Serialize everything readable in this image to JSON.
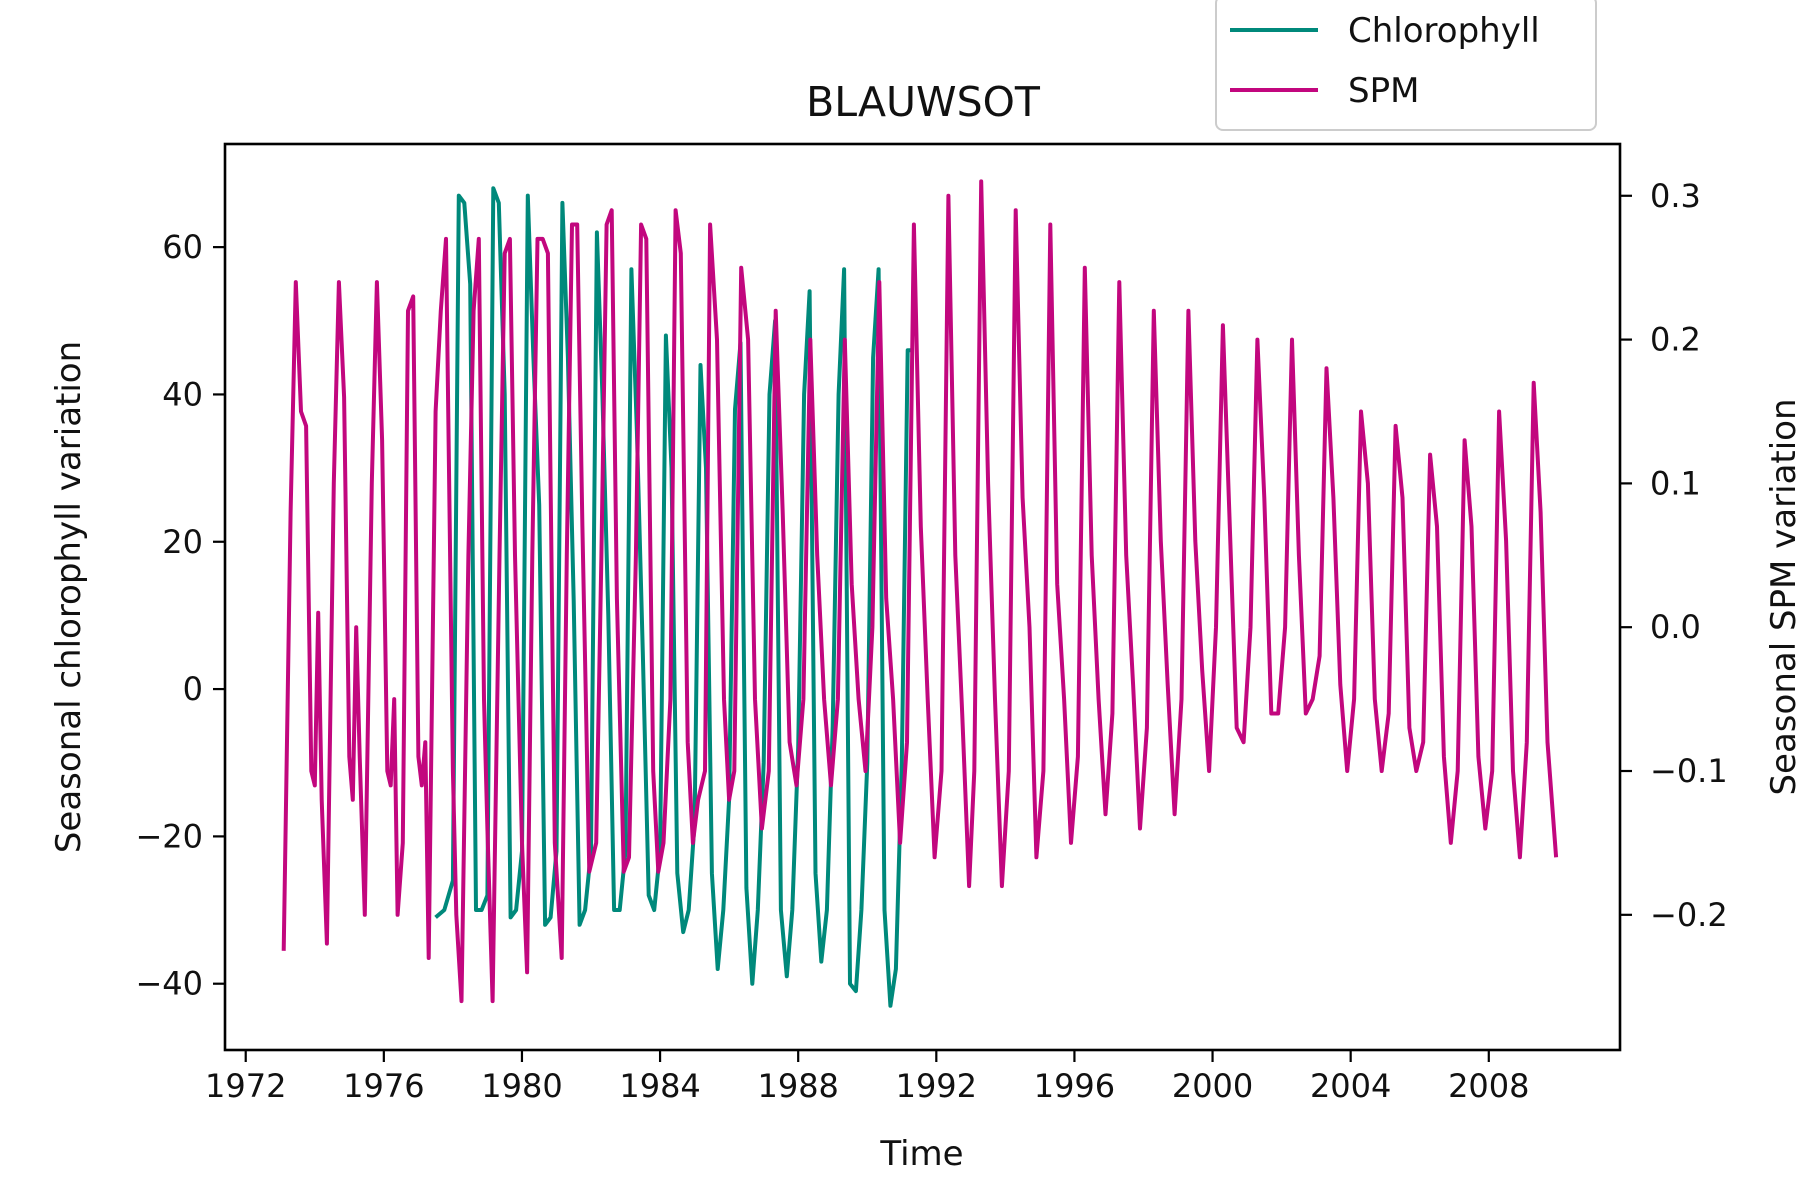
{
  "chart_data": {
    "type": "line",
    "title": "BLAUWSOT",
    "xlabel": "Time",
    "ylabel_left": "Seasonal chlorophyll variation",
    "ylabel_right": "Seasonal SPM variation",
    "xlim": [
      1971.4,
      2011.8
    ],
    "xticks": [
      1972,
      1976,
      1980,
      1984,
      1988,
      1992,
      1996,
      2000,
      2004,
      2008
    ],
    "ylim_left": [
      -49,
      74
    ],
    "yticks_left": [
      -40,
      -20,
      0,
      20,
      40,
      60
    ],
    "ylim_right": [
      -0.294,
      0.336
    ],
    "yticks_right": [
      -0.2,
      -0.1,
      0.0,
      0.1,
      0.2,
      0.3
    ],
    "grid": false,
    "legend": {
      "position": "top-right",
      "entries": [
        "Chlorophyll",
        "SPM"
      ]
    },
    "series": [
      {
        "name": "Chlorophyll",
        "axis": "left",
        "color": "#00897b",
        "points": [
          [
            1977.5,
            -31
          ],
          [
            1977.75,
            -30
          ],
          [
            1978.0,
            -26
          ],
          [
            1978.17,
            67
          ],
          [
            1978.33,
            66
          ],
          [
            1978.5,
            55
          ],
          [
            1978.67,
            -30
          ],
          [
            1978.83,
            -30
          ],
          [
            1979.0,
            -28
          ],
          [
            1979.17,
            68
          ],
          [
            1979.33,
            66
          ],
          [
            1979.5,
            40
          ],
          [
            1979.67,
            -31
          ],
          [
            1979.83,
            -30
          ],
          [
            1980.0,
            -22
          ],
          [
            1980.17,
            67
          ],
          [
            1980.33,
            45
          ],
          [
            1980.5,
            25
          ],
          [
            1980.67,
            -32
          ],
          [
            1980.83,
            -31
          ],
          [
            1981.0,
            -22
          ],
          [
            1981.17,
            66
          ],
          [
            1981.33,
            45
          ],
          [
            1981.5,
            12
          ],
          [
            1981.67,
            -32
          ],
          [
            1981.83,
            -30
          ],
          [
            1982.0,
            -22
          ],
          [
            1982.17,
            62
          ],
          [
            1982.33,
            40
          ],
          [
            1982.5,
            10
          ],
          [
            1982.67,
            -30
          ],
          [
            1982.83,
            -30
          ],
          [
            1983.0,
            -22
          ],
          [
            1983.17,
            57
          ],
          [
            1983.33,
            35
          ],
          [
            1983.5,
            5
          ],
          [
            1983.67,
            -28
          ],
          [
            1983.83,
            -30
          ],
          [
            1984.0,
            -22
          ],
          [
            1984.17,
            48
          ],
          [
            1984.33,
            30
          ],
          [
            1984.5,
            -25
          ],
          [
            1984.67,
            -33
          ],
          [
            1984.83,
            -30
          ],
          [
            1985.0,
            -18
          ],
          [
            1985.17,
            44
          ],
          [
            1985.33,
            30
          ],
          [
            1985.5,
            -25
          ],
          [
            1985.67,
            -38
          ],
          [
            1985.83,
            -30
          ],
          [
            1986.0,
            -15
          ],
          [
            1986.17,
            38
          ],
          [
            1986.33,
            47
          ],
          [
            1986.5,
            -27
          ],
          [
            1986.67,
            -40
          ],
          [
            1986.83,
            -30
          ],
          [
            1987.0,
            -10
          ],
          [
            1987.17,
            40
          ],
          [
            1987.33,
            50
          ],
          [
            1987.5,
            -30
          ],
          [
            1987.67,
            -39
          ],
          [
            1987.83,
            -30
          ],
          [
            1988.0,
            -8
          ],
          [
            1988.17,
            40
          ],
          [
            1988.33,
            54
          ],
          [
            1988.5,
            -25
          ],
          [
            1988.67,
            -37
          ],
          [
            1988.83,
            -30
          ],
          [
            1989.0,
            -5
          ],
          [
            1989.17,
            40
          ],
          [
            1989.33,
            57
          ],
          [
            1989.5,
            -40
          ],
          [
            1989.67,
            -41
          ],
          [
            1989.83,
            -30
          ],
          [
            1990.0,
            -10
          ],
          [
            1990.17,
            45
          ],
          [
            1990.33,
            57
          ],
          [
            1990.5,
            -30
          ],
          [
            1990.67,
            -43
          ],
          [
            1990.83,
            -38
          ],
          [
            1991.0,
            -10
          ],
          [
            1991.17,
            46
          ],
          [
            1991.33,
            46
          ]
        ]
      },
      {
        "name": "SPM",
        "axis": "right",
        "color": "#c2077e",
        "points": [
          [
            1973.1,
            -0.225
          ],
          [
            1973.3,
            0.08
          ],
          [
            1973.45,
            0.24
          ],
          [
            1973.6,
            0.15
          ],
          [
            1973.75,
            0.14
          ],
          [
            1973.9,
            -0.1
          ],
          [
            1974.0,
            -0.11
          ],
          [
            1974.1,
            0.01
          ],
          [
            1974.2,
            -0.12
          ],
          [
            1974.35,
            -0.22
          ],
          [
            1974.55,
            0.1
          ],
          [
            1974.7,
            0.24
          ],
          [
            1974.85,
            0.16
          ],
          [
            1975.0,
            -0.09
          ],
          [
            1975.1,
            -0.12
          ],
          [
            1975.2,
            0.0
          ],
          [
            1975.3,
            -0.09
          ],
          [
            1975.45,
            -0.2
          ],
          [
            1975.65,
            0.1
          ],
          [
            1975.8,
            0.24
          ],
          [
            1975.95,
            0.13
          ],
          [
            1976.1,
            -0.1
          ],
          [
            1976.2,
            -0.11
          ],
          [
            1976.3,
            -0.05
          ],
          [
            1976.4,
            -0.2
          ],
          [
            1976.55,
            -0.15
          ],
          [
            1976.7,
            0.22
          ],
          [
            1976.85,
            0.23
          ],
          [
            1977.0,
            -0.09
          ],
          [
            1977.1,
            -0.11
          ],
          [
            1977.2,
            -0.08
          ],
          [
            1977.3,
            -0.23
          ],
          [
            1977.5,
            0.15
          ],
          [
            1977.65,
            0.22
          ],
          [
            1977.8,
            0.27
          ],
          [
            1978.0,
            -0.1
          ],
          [
            1978.1,
            -0.2
          ],
          [
            1978.25,
            -0.26
          ],
          [
            1978.45,
            0.05
          ],
          [
            1978.6,
            0.22
          ],
          [
            1978.75,
            0.27
          ],
          [
            1978.9,
            -0.05
          ],
          [
            1979.0,
            -0.14
          ],
          [
            1979.15,
            -0.26
          ],
          [
            1979.35,
            0.05
          ],
          [
            1979.5,
            0.26
          ],
          [
            1979.65,
            0.27
          ],
          [
            1979.8,
            0.05
          ],
          [
            1980.0,
            -0.15
          ],
          [
            1980.15,
            -0.24
          ],
          [
            1980.3,
            0.05
          ],
          [
            1980.45,
            0.27
          ],
          [
            1980.6,
            0.27
          ],
          [
            1980.75,
            0.26
          ],
          [
            1980.95,
            -0.15
          ],
          [
            1981.15,
            -0.23
          ],
          [
            1981.3,
            0.05
          ],
          [
            1981.45,
            0.28
          ],
          [
            1981.6,
            0.28
          ],
          [
            1981.75,
            0.07
          ],
          [
            1981.95,
            -0.17
          ],
          [
            1982.15,
            -0.15
          ],
          [
            1982.3,
            0.05
          ],
          [
            1982.45,
            0.28
          ],
          [
            1982.6,
            0.29
          ],
          [
            1982.75,
            0.02
          ],
          [
            1982.95,
            -0.17
          ],
          [
            1983.1,
            -0.16
          ],
          [
            1983.3,
            0.05
          ],
          [
            1983.45,
            0.28
          ],
          [
            1983.6,
            0.27
          ],
          [
            1983.8,
            -0.1
          ],
          [
            1983.95,
            -0.17
          ],
          [
            1984.1,
            -0.15
          ],
          [
            1984.3,
            -0.05
          ],
          [
            1984.45,
            0.29
          ],
          [
            1984.6,
            0.26
          ],
          [
            1984.8,
            -0.08
          ],
          [
            1984.95,
            -0.15
          ],
          [
            1985.1,
            -0.12
          ],
          [
            1985.3,
            -0.1
          ],
          [
            1985.45,
            0.28
          ],
          [
            1985.65,
            0.2
          ],
          [
            1985.85,
            -0.05
          ],
          [
            1986.0,
            -0.12
          ],
          [
            1986.15,
            -0.1
          ],
          [
            1986.35,
            0.25
          ],
          [
            1986.55,
            0.2
          ],
          [
            1986.75,
            -0.05
          ],
          [
            1986.95,
            -0.14
          ],
          [
            1987.15,
            -0.1
          ],
          [
            1987.35,
            0.22
          ],
          [
            1987.55,
            0.08
          ],
          [
            1987.75,
            -0.08
          ],
          [
            1987.95,
            -0.11
          ],
          [
            1988.15,
            -0.05
          ],
          [
            1988.35,
            0.2
          ],
          [
            1988.55,
            0.05
          ],
          [
            1988.75,
            -0.05
          ],
          [
            1988.95,
            -0.11
          ],
          [
            1989.15,
            -0.05
          ],
          [
            1989.35,
            0.2
          ],
          [
            1989.55,
            0.03
          ],
          [
            1989.75,
            -0.05
          ],
          [
            1989.95,
            -0.1
          ],
          [
            1990.15,
            0.0
          ],
          [
            1990.35,
            0.24
          ],
          [
            1990.55,
            0.02
          ],
          [
            1990.75,
            -0.05
          ],
          [
            1990.95,
            -0.15
          ],
          [
            1991.15,
            -0.08
          ],
          [
            1991.35,
            0.28
          ],
          [
            1991.55,
            0.07
          ],
          [
            1991.75,
            -0.05
          ],
          [
            1991.95,
            -0.16
          ],
          [
            1992.15,
            -0.1
          ],
          [
            1992.35,
            0.3
          ],
          [
            1992.55,
            0.05
          ],
          [
            1992.75,
            -0.06
          ],
          [
            1992.95,
            -0.18
          ],
          [
            1993.1,
            -0.1
          ],
          [
            1993.3,
            0.31
          ],
          [
            1993.5,
            0.1
          ],
          [
            1993.7,
            -0.05
          ],
          [
            1993.9,
            -0.18
          ],
          [
            1994.1,
            -0.1
          ],
          [
            1994.3,
            0.29
          ],
          [
            1994.5,
            0.09
          ],
          [
            1994.7,
            0.0
          ],
          [
            1994.9,
            -0.16
          ],
          [
            1995.1,
            -0.1
          ],
          [
            1995.3,
            0.28
          ],
          [
            1995.5,
            0.03
          ],
          [
            1995.7,
            -0.05
          ],
          [
            1995.9,
            -0.15
          ],
          [
            1996.1,
            -0.09
          ],
          [
            1996.3,
            0.25
          ],
          [
            1996.5,
            0.05
          ],
          [
            1996.7,
            -0.05
          ],
          [
            1996.9,
            -0.13
          ],
          [
            1997.1,
            -0.06
          ],
          [
            1997.3,
            0.24
          ],
          [
            1997.5,
            0.05
          ],
          [
            1997.7,
            -0.04
          ],
          [
            1997.9,
            -0.14
          ],
          [
            1998.1,
            -0.07
          ],
          [
            1998.3,
            0.22
          ],
          [
            1998.5,
            0.06
          ],
          [
            1998.7,
            -0.04
          ],
          [
            1998.9,
            -0.13
          ],
          [
            1999.1,
            -0.05
          ],
          [
            1999.3,
            0.22
          ],
          [
            1999.5,
            0.06
          ],
          [
            1999.7,
            -0.03
          ],
          [
            1999.9,
            -0.1
          ],
          [
            2000.1,
            0.0
          ],
          [
            2000.3,
            0.21
          ],
          [
            2000.5,
            0.07
          ],
          [
            2000.7,
            -0.07
          ],
          [
            2000.9,
            -0.08
          ],
          [
            2001.1,
            0.0
          ],
          [
            2001.3,
            0.2
          ],
          [
            2001.5,
            0.09
          ],
          [
            2001.7,
            -0.06
          ],
          [
            2001.9,
            -0.06
          ],
          [
            2002.1,
            0.0
          ],
          [
            2002.3,
            0.2
          ],
          [
            2002.5,
            0.05
          ],
          [
            2002.7,
            -0.06
          ],
          [
            2002.9,
            -0.05
          ],
          [
            2003.1,
            -0.02
          ],
          [
            2003.3,
            0.18
          ],
          [
            2003.5,
            0.09
          ],
          [
            2003.7,
            -0.04
          ],
          [
            2003.9,
            -0.1
          ],
          [
            2004.1,
            -0.05
          ],
          [
            2004.3,
            0.15
          ],
          [
            2004.5,
            0.1
          ],
          [
            2004.7,
            -0.05
          ],
          [
            2004.9,
            -0.1
          ],
          [
            2005.1,
            -0.06
          ],
          [
            2005.3,
            0.14
          ],
          [
            2005.5,
            0.09
          ],
          [
            2005.7,
            -0.07
          ],
          [
            2005.9,
            -0.1
          ],
          [
            2006.1,
            -0.08
          ],
          [
            2006.3,
            0.12
          ],
          [
            2006.5,
            0.07
          ],
          [
            2006.7,
            -0.09
          ],
          [
            2006.9,
            -0.15
          ],
          [
            2007.1,
            -0.1
          ],
          [
            2007.3,
            0.13
          ],
          [
            2007.5,
            0.07
          ],
          [
            2007.7,
            -0.09
          ],
          [
            2007.9,
            -0.14
          ],
          [
            2008.1,
            -0.1
          ],
          [
            2008.3,
            0.15
          ],
          [
            2008.5,
            0.06
          ],
          [
            2008.7,
            -0.1
          ],
          [
            2008.9,
            -0.16
          ],
          [
            2009.1,
            -0.08
          ],
          [
            2009.3,
            0.17
          ],
          [
            2009.5,
            0.08
          ],
          [
            2009.7,
            -0.08
          ],
          [
            2009.95,
            -0.16
          ]
        ]
      }
    ]
  }
}
